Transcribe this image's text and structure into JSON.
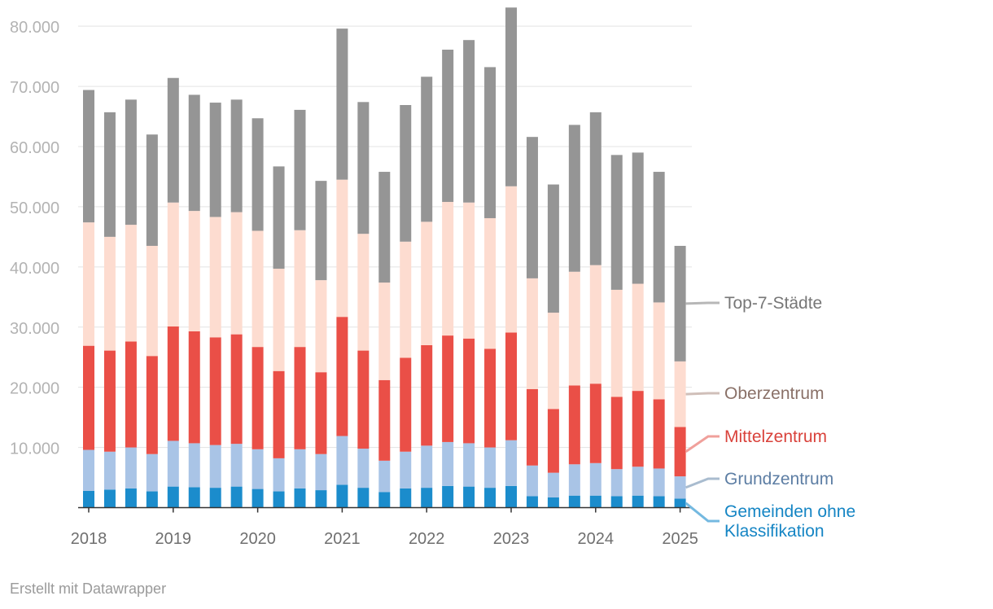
{
  "chart_data": {
    "type": "bar",
    "stacked": true,
    "ylim": [
      0,
      83000
    ],
    "yticks": [
      0,
      10000,
      20000,
      30000,
      40000,
      50000,
      60000,
      70000,
      80000
    ],
    "ytick_labels": [
      "",
      "10.000",
      "20.000",
      "30.000",
      "40.000",
      "50.000",
      "60.000",
      "70.000",
      "80.000"
    ],
    "xtick_labels": [
      "2018",
      "2019",
      "2020",
      "2021",
      "2022",
      "2023",
      "2024",
      "2025"
    ],
    "grid": true,
    "categories": [
      "2018 Q1",
      "2018 Q2",
      "2018 Q3",
      "2018 Q4",
      "2019 Q1",
      "2019 Q2",
      "2019 Q3",
      "2019 Q4",
      "2020 Q1",
      "2020 Q2",
      "2020 Q3",
      "2020 Q4",
      "2021 Q1",
      "2021 Q2",
      "2021 Q3",
      "2021 Q4",
      "2022 Q1",
      "2022 Q2",
      "2022 Q3",
      "2022 Q4",
      "2023 Q1",
      "2023 Q2",
      "2023 Q3",
      "2023 Q4",
      "2024 Q1",
      "2024 Q2",
      "2024 Q3",
      "2024 Q4",
      "2025 Q1"
    ],
    "series": [
      {
        "name": "Gemeinden ohne Klassifikation",
        "color": "#1b8ccc",
        "values": [
          2800,
          3000,
          3200,
          2700,
          3500,
          3400,
          3300,
          3500,
          3100,
          2700,
          3200,
          2900,
          3800,
          3300,
          2600,
          3200,
          3300,
          3600,
          3500,
          3300,
          3600,
          1900,
          1700,
          2000,
          2000,
          1900,
          2000,
          1900,
          1500
        ]
      },
      {
        "name": "Grundzentrum",
        "color": "#a9c4e6",
        "values": [
          6800,
          6300,
          6800,
          6200,
          7600,
          7300,
          7100,
          7100,
          6600,
          5500,
          6500,
          6000,
          8100,
          6500,
          5200,
          6100,
          7000,
          7300,
          7200,
          6700,
          7600,
          5100,
          4100,
          5200,
          5400,
          4500,
          4800,
          4600,
          3700
        ]
      },
      {
        "name": "Mittelzentrum",
        "color": "#ea4f47",
        "values": [
          17300,
          16800,
          17600,
          16300,
          19000,
          18600,
          17900,
          18200,
          17000,
          14500,
          17000,
          13600,
          19800,
          16300,
          13400,
          15600,
          16700,
          17700,
          17400,
          16400,
          17900,
          12700,
          10600,
          13100,
          13200,
          12000,
          12600,
          11500,
          8200
        ]
      },
      {
        "name": "Oberzentrum",
        "color": "#fddcd0",
        "values": [
          20500,
          18900,
          19400,
          18300,
          20600,
          20000,
          20000,
          20300,
          19300,
          17000,
          19400,
          15300,
          22800,
          19400,
          16200,
          19300,
          20500,
          22200,
          22600,
          21700,
          24300,
          18400,
          16000,
          18900,
          19700,
          17800,
          17800,
          16100,
          10900
        ]
      },
      {
        "name": "Top-7-Städte",
        "color": "#959595",
        "values": [
          22000,
          20700,
          20800,
          18500,
          20700,
          19300,
          19000,
          18700,
          18700,
          17000,
          20000,
          16500,
          25100,
          21900,
          18400,
          22700,
          24100,
          25300,
          27000,
          25100,
          29700,
          23500,
          21300,
          24400,
          25400,
          22400,
          21800,
          21700,
          19200
        ]
      }
    ]
  },
  "legend": [
    {
      "label": "Top-7-Städte",
      "color": "#777777",
      "line_color": "#b7b7b7"
    },
    {
      "label": "Oberzentrum",
      "color": "#8a7168",
      "line_color": "#d0bfb9"
    },
    {
      "label": "Mittelzentrum",
      "color": "#d9423b",
      "line_color": "#f0a09b"
    },
    {
      "label": "Grundzentrum",
      "color": "#5d7ea4",
      "line_color": "#a9bccf"
    },
    {
      "label": "Gemeinden ohne Klassifikation",
      "line1": "Gemeinden ohne",
      "line2": "Klassifikation",
      "color": "#1585c4",
      "line_color": "#74b9e0"
    }
  ],
  "credit": "Erstellt mit Datawrapper"
}
